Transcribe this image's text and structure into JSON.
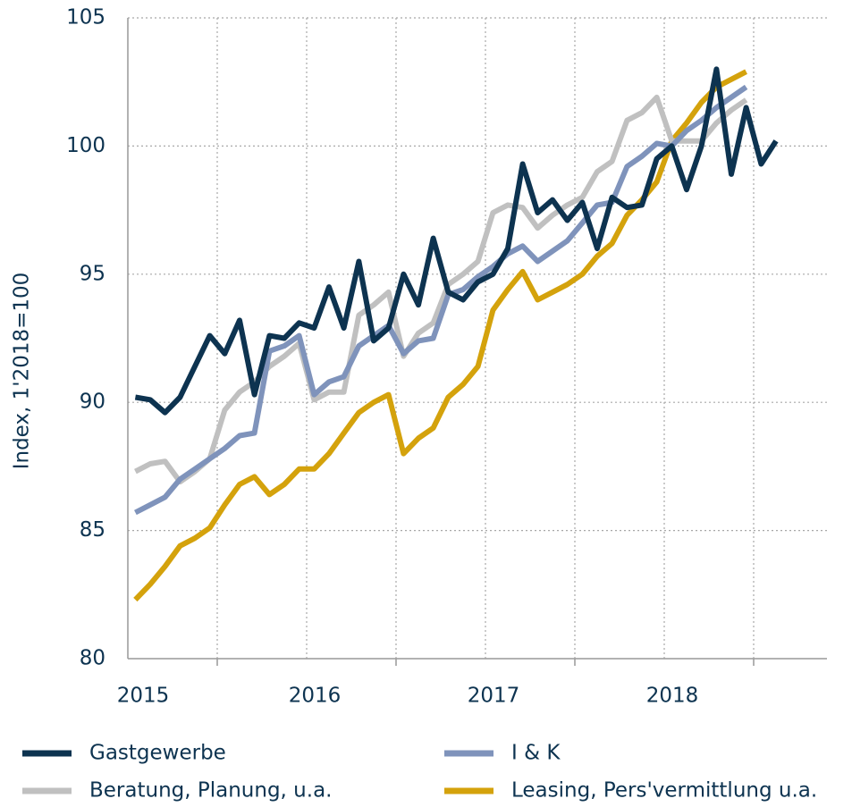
{
  "chart_data": {
    "type": "line",
    "y_label": "Index, 1'2018=100",
    "x": [
      2015.042,
      2015.125,
      2015.208,
      2015.292,
      2015.375,
      2015.458,
      2015.542,
      2015.625,
      2015.708,
      2015.792,
      2015.875,
      2015.958,
      2016.042,
      2016.125,
      2016.208,
      2016.292,
      2016.375,
      2016.458,
      2016.542,
      2016.625,
      2016.708,
      2016.792,
      2016.875,
      2016.958,
      2017.042,
      2017.125,
      2017.208,
      2017.292,
      2017.375,
      2017.458,
      2017.542,
      2017.625,
      2017.708,
      2017.792,
      2017.875,
      2017.958,
      2018.042,
      2018.125,
      2018.208,
      2018.292,
      2018.375,
      2018.458,
      2018.542,
      2018.625
    ],
    "series": [
      {
        "name": "Leasing, Pers'vermittlung u.a.",
        "color": "#d4a20c",
        "values": [
          82.3,
          82.9,
          83.6,
          84.4,
          84.7,
          85.1,
          86.0,
          86.8,
          87.1,
          86.4,
          86.8,
          87.4,
          87.4,
          88.0,
          88.8,
          89.6,
          90.0,
          90.3,
          88.0,
          88.6,
          89.0,
          90.2,
          90.7,
          91.4,
          93.6,
          94.4,
          95.1,
          94.0,
          94.3,
          94.6,
          95.0,
          95.7,
          96.2,
          97.3,
          97.9,
          98.6,
          100.2,
          100.9,
          101.7,
          102.3,
          102.6,
          102.9,
          null,
          null
        ]
      },
      {
        "name": "Beratung, Planung, u.a.",
        "color": "#c0c0c0",
        "values": [
          87.3,
          87.6,
          87.7,
          86.9,
          87.3,
          87.8,
          89.7,
          90.4,
          90.8,
          91.4,
          91.8,
          92.3,
          90.1,
          90.4,
          90.4,
          93.4,
          93.8,
          94.3,
          91.8,
          92.7,
          93.1,
          94.6,
          95.0,
          95.5,
          97.4,
          97.7,
          97.6,
          96.8,
          97.3,
          97.7,
          98.0,
          99.0,
          99.4,
          101.0,
          101.3,
          101.9,
          100.2,
          100.2,
          100.2,
          100.9,
          101.4,
          101.8,
          null,
          null
        ]
      },
      {
        "name": "I & K",
        "color": "#7f93bb",
        "values": [
          85.7,
          86.0,
          86.3,
          87.0,
          87.4,
          87.8,
          88.2,
          88.7,
          88.8,
          92.0,
          92.2,
          92.6,
          90.3,
          90.8,
          91.0,
          92.2,
          92.6,
          93.0,
          91.9,
          92.4,
          92.5,
          94.2,
          94.4,
          94.9,
          95.3,
          95.8,
          96.1,
          95.5,
          95.9,
          96.3,
          97.0,
          97.7,
          97.8,
          99.2,
          99.6,
          100.1,
          100.0,
          100.6,
          101.0,
          101.5,
          101.9,
          102.3,
          null,
          null
        ]
      },
      {
        "name": "Gastgewerbe",
        "color": "#0d3350",
        "values": [
          90.2,
          90.1,
          89.6,
          90.2,
          91.4,
          92.6,
          91.9,
          93.2,
          90.3,
          92.6,
          92.5,
          93.1,
          92.9,
          94.5,
          92.9,
          95.5,
          92.4,
          92.9,
          95.0,
          93.8,
          96.4,
          94.3,
          94.0,
          94.7,
          95.0,
          96.0,
          99.3,
          97.4,
          97.9,
          97.1,
          97.8,
          96.0,
          98.0,
          97.6,
          97.7,
          99.5,
          100.0,
          98.3,
          100.0,
          103.0,
          98.9,
          101.5,
          99.3,
          100.2
        ]
      }
    ],
    "xlim": [
      2015,
      2018.91
    ],
    "xticks": [
      2015,
      2016,
      2017,
      2018
    ],
    "ylim": [
      80,
      105
    ],
    "yticks": [
      80,
      85,
      90,
      95,
      100,
      105
    ],
    "grid": true
  }
}
